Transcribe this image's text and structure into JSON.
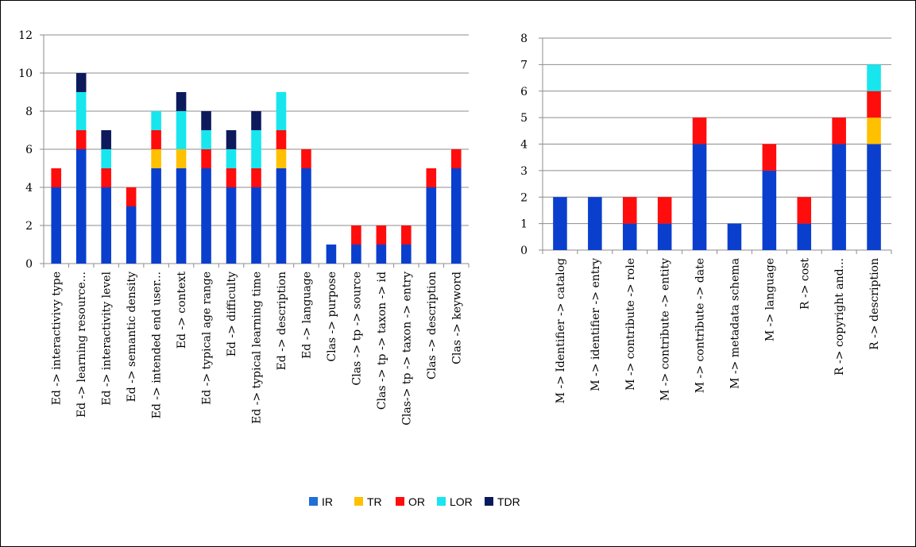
{
  "colors": {
    "IR": "#0a3fce",
    "TR": "#ffc000",
    "OR": "#ff0d0d",
    "LOR": "#17e6ee",
    "TDR": "#0c1a5c"
  },
  "legend": {
    "items": [
      {
        "key": "IR",
        "label": "IR",
        "swatch": "#1f6fd6"
      },
      {
        "key": "TR",
        "label": "TR",
        "swatch": "#ffc000"
      },
      {
        "key": "OR",
        "label": "OR",
        "swatch": "#ff0d0d"
      },
      {
        "key": "LOR",
        "label": "LOR",
        "swatch": "#17e6ee"
      },
      {
        "key": "TDR",
        "label": "TDR",
        "swatch": "#0c1a5c"
      }
    ]
  },
  "chart_data": [
    {
      "type": "bar",
      "stacked": true,
      "ylim": [
        0,
        12
      ],
      "yticks": [
        0,
        2,
        4,
        6,
        8,
        10,
        12
      ],
      "grid": true,
      "legend_position": "bottom",
      "categories": [
        "Ed -> interactivivy type",
        "Ed -> learning resource...",
        "Ed -> interactivity level",
        "Ed -> semantic density",
        "Ed -> intended end user...",
        "Ed -> context",
        "Ed -> typical age range",
        "Ed -> difficulty",
        "Ed -> typical learning time",
        "Ed -> description",
        "Ed -> language",
        "Clas -> purpose",
        "Clas -> tp -> source",
        "Clas -> tp -> taxon -> id",
        "Clas-> tp -> taxon -> entry",
        "Clas -> description",
        "Clas -> keyword"
      ],
      "series": [
        {
          "name": "IR",
          "values": [
            4,
            6,
            4,
            3,
            5,
            5,
            5,
            4,
            4,
            5,
            5,
            1,
            1,
            1,
            1,
            4,
            5
          ]
        },
        {
          "name": "TR",
          "values": [
            0,
            0,
            0,
            0,
            1,
            1,
            0,
            0,
            0,
            1,
            0,
            0,
            0,
            0,
            0,
            0,
            0
          ]
        },
        {
          "name": "OR",
          "values": [
            1,
            1,
            1,
            1,
            1,
            0,
            1,
            1,
            1,
            1,
            1,
            0,
            1,
            1,
            1,
            1,
            1
          ]
        },
        {
          "name": "LOR",
          "values": [
            0,
            2,
            1,
            0,
            1,
            2,
            1,
            1,
            2,
            2,
            0,
            0,
            0,
            0,
            0,
            0,
            0
          ]
        },
        {
          "name": "TDR",
          "values": [
            0,
            1,
            1,
            0,
            0,
            1,
            1,
            1,
            1,
            0,
            0,
            0,
            0,
            0,
            0,
            0,
            0
          ]
        }
      ]
    },
    {
      "type": "bar",
      "stacked": true,
      "ylim": [
        0,
        8
      ],
      "yticks": [
        0,
        1,
        2,
        3,
        4,
        5,
        6,
        7,
        8
      ],
      "grid": true,
      "legend_position": "bottom",
      "categories": [
        "M -> Identifier -> catalog",
        "M -> identifier -> entry",
        "M -> contribute -> role",
        "M -> contribute -> entity",
        "M -> contribute -> date",
        "M -> metadata schema",
        "M -> language",
        "R -> cost",
        "R -> copyright and...",
        "R -> description"
      ],
      "series": [
        {
          "name": "IR",
          "values": [
            2,
            2,
            1,
            1,
            4,
            1,
            3,
            1,
            4,
            4
          ]
        },
        {
          "name": "TR",
          "values": [
            0,
            0,
            0,
            0,
            0,
            0,
            0,
            0,
            0,
            1
          ]
        },
        {
          "name": "OR",
          "values": [
            0,
            0,
            1,
            1,
            1,
            0,
            1,
            1,
            1,
            1
          ]
        },
        {
          "name": "LOR",
          "values": [
            0,
            0,
            0,
            0,
            0,
            0,
            0,
            0,
            0,
            1
          ]
        },
        {
          "name": "TDR",
          "values": [
            0,
            0,
            0,
            0,
            0,
            0,
            0,
            0,
            0,
            0
          ]
        }
      ]
    }
  ]
}
